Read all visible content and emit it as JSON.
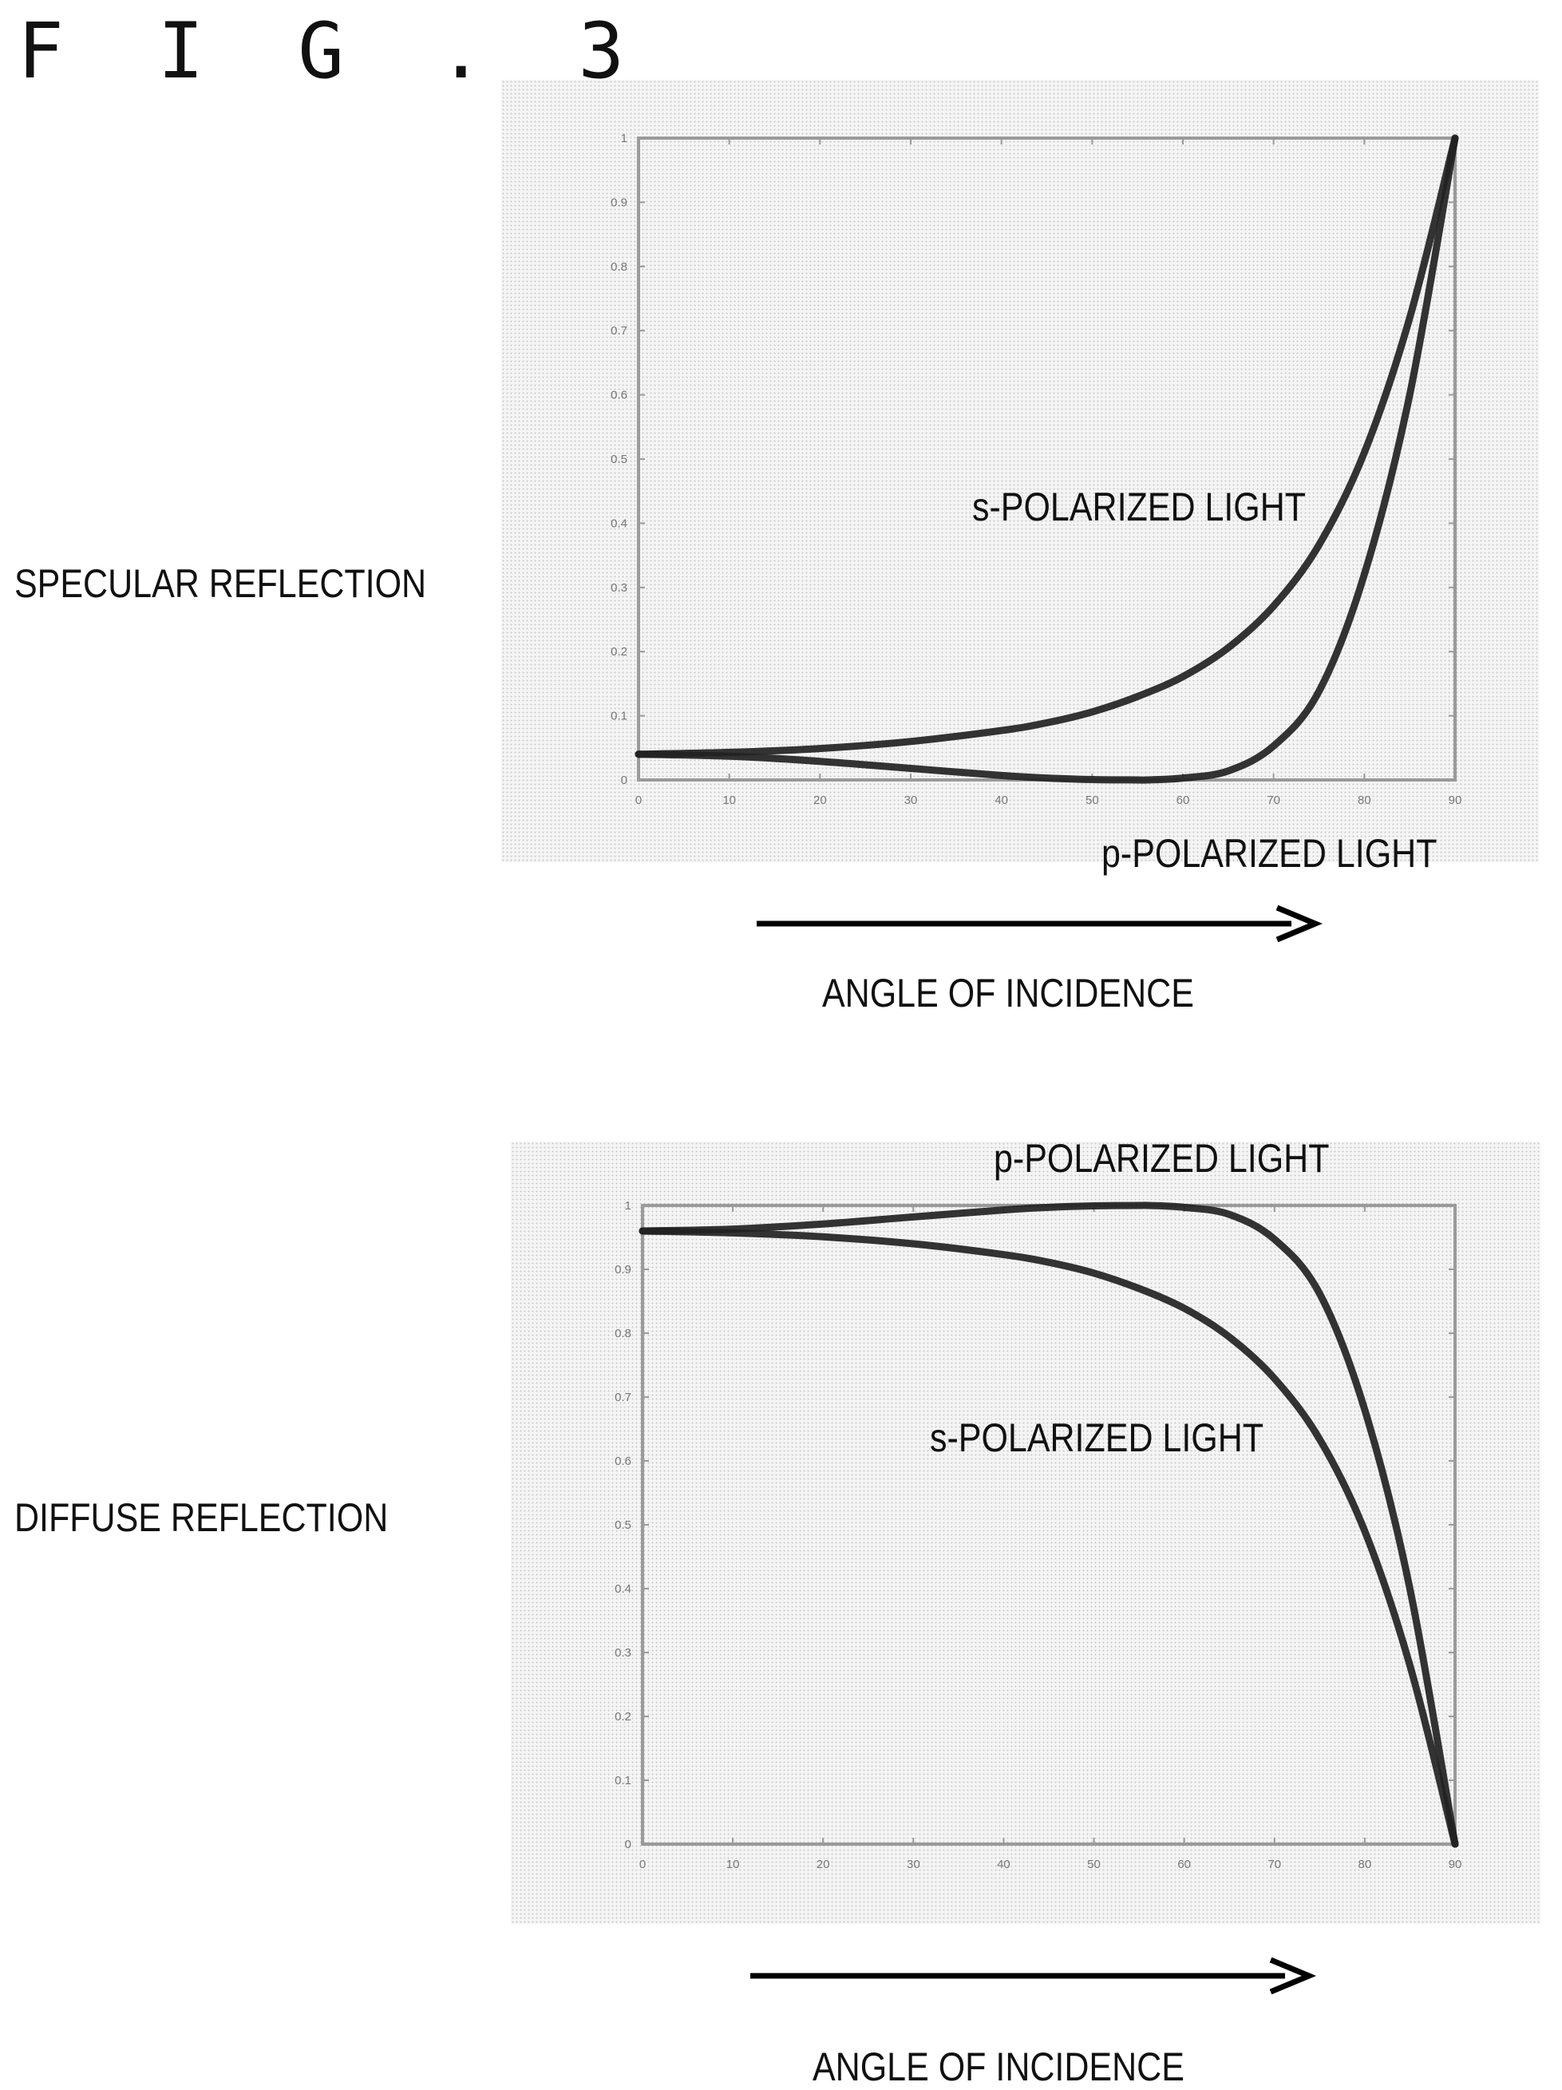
{
  "figure_label": "F I G . 3",
  "colors": {
    "curve": "#222222",
    "frame": "#9a9a9a",
    "arrow": "#000000"
  },
  "chart_data": [
    {
      "type": "line",
      "row_label": "SPECULAR REFLECTION",
      "xlabel": "ANGLE OF INCIDENCE",
      "xlim": [
        0,
        90
      ],
      "ylim": [
        0,
        1
      ],
      "x_ticks": [
        0,
        10,
        20,
        30,
        40,
        50,
        60,
        70,
        80,
        90
      ],
      "y_ticks": [
        "0",
        "0.1",
        "0.2",
        "0.3",
        "0.4",
        "0.5",
        "0.6",
        "0.7",
        "0.8",
        "0.9",
        "1"
      ],
      "grid": false,
      "series": [
        {
          "name": "s-POLARIZED LIGHT",
          "x": [
            0,
            10,
            20,
            30,
            40,
            45,
            50,
            55,
            60,
            65,
            70,
            75,
            80,
            85,
            90
          ],
          "y": [
            0.04,
            0.043,
            0.049,
            0.06,
            0.077,
            0.089,
            0.106,
            0.13,
            0.161,
            0.206,
            0.271,
            0.366,
            0.51,
            0.72,
            1.0
          ]
        },
        {
          "name": "p-POLARIZED LIGHT",
          "x": [
            0,
            10,
            20,
            30,
            40,
            45,
            50,
            55,
            56,
            60,
            65,
            70,
            75,
            80,
            85,
            90
          ],
          "y": [
            0.04,
            0.037,
            0.029,
            0.018,
            0.007,
            0.003,
            0.0006,
            0.0,
            0.0,
            0.003,
            0.014,
            0.053,
            0.138,
            0.32,
            0.6,
            1.0
          ]
        }
      ]
    },
    {
      "type": "line",
      "row_label": "DIFFUSE REFLECTION",
      "xlabel": "ANGLE OF INCIDENCE",
      "xlim": [
        0,
        90
      ],
      "ylim": [
        0,
        1
      ],
      "x_ticks": [
        0,
        10,
        20,
        30,
        40,
        50,
        60,
        70,
        80,
        90
      ],
      "y_ticks": [
        "0",
        "0.1",
        "0.2",
        "0.3",
        "0.4",
        "0.5",
        "0.6",
        "0.7",
        "0.8",
        "0.9",
        "1"
      ],
      "grid": false,
      "series": [
        {
          "name": "p-POLARIZED LIGHT",
          "x": [
            0,
            10,
            20,
            30,
            40,
            45,
            50,
            55,
            56,
            60,
            65,
            70,
            75,
            80,
            85,
            90
          ],
          "y": [
            0.96,
            0.963,
            0.971,
            0.982,
            0.993,
            0.997,
            0.9994,
            1.0,
            1.0,
            0.997,
            0.986,
            0.947,
            0.862,
            0.68,
            0.4,
            0.0
          ]
        },
        {
          "name": "s-POLARIZED LIGHT",
          "x": [
            0,
            10,
            20,
            30,
            40,
            45,
            50,
            55,
            60,
            65,
            70,
            75,
            80,
            85,
            90
          ],
          "y": [
            0.96,
            0.957,
            0.951,
            0.94,
            0.923,
            0.911,
            0.894,
            0.87,
            0.839,
            0.794,
            0.729,
            0.634,
            0.49,
            0.28,
            0.0
          ]
        }
      ]
    }
  ]
}
